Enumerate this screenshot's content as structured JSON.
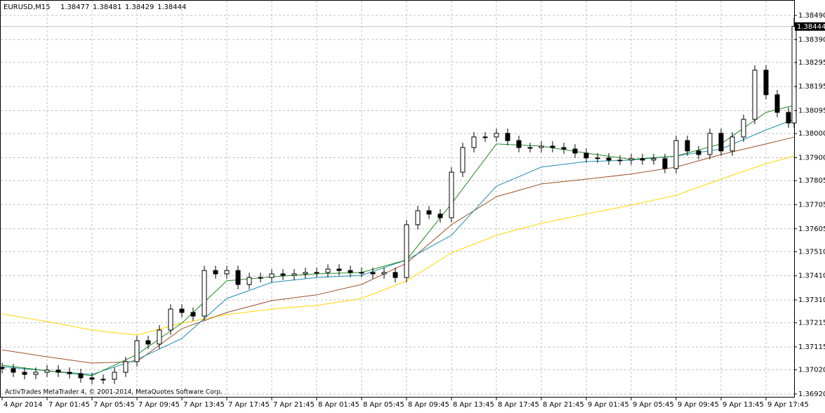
{
  "chart_data": {
    "type": "candlestick",
    "symbol": "EURUSD,M15",
    "ohlc": [
      1.38477,
      1.38481,
      1.38429,
      1.38444
    ],
    "footer": "ActivTrades MetaTrader 4, © 2001-2014, MetaQuotes Software Corp.",
    "grid": true,
    "up_color": "#ffffff",
    "down_color": "#000000",
    "wick_color": "#000000",
    "price_line_color": "#c0c0c0",
    "xlim": [
      0,
      282
    ],
    "ylim": [
      1.36908,
      1.38554
    ],
    "xticks": [
      {
        "value": 0,
        "label": "4 Apr 2014"
      },
      {
        "value": 16,
        "label": "7 Apr 01:45"
      },
      {
        "value": 32,
        "label": "7 Apr 05:45"
      },
      {
        "value": 48,
        "label": "7 Apr 09:45"
      },
      {
        "value": 64,
        "label": "7 Apr 13:45"
      },
      {
        "value": 80,
        "label": "7 Apr 17:45"
      },
      {
        "value": 96,
        "label": "7 Apr 21:45"
      },
      {
        "value": 112,
        "label": "8 Apr 01:45"
      },
      {
        "value": 128,
        "label": "8 Apr 05:45"
      },
      {
        "value": 144,
        "label": "8 Apr 09:45"
      },
      {
        "value": 160,
        "label": "8 Apr 13:45"
      },
      {
        "value": 176,
        "label": "8 Apr 17:45"
      },
      {
        "value": 192,
        "label": "8 Apr 21:45"
      },
      {
        "value": 208,
        "label": "9 Apr 01:45"
      },
      {
        "value": 224,
        "label": "9 Apr 05:45"
      },
      {
        "value": 240,
        "label": "9 Apr 09:45"
      },
      {
        "value": 256,
        "label": "9 Apr 13:45"
      },
      {
        "value": 272,
        "label": "9 Apr 17:45"
      }
    ],
    "yticks": [
      {
        "value": 1.3849,
        "label": "1.38490"
      },
      {
        "value": 1.3839,
        "label": "1.38390"
      },
      1.38295,
      1.38195,
      1.38095,
      {
        "value": 1.38,
        "label": "1.38000"
      },
      {
        "value": 1.379,
        "label": "1.37900"
      },
      1.37805,
      1.37705,
      1.37605,
      {
        "value": 1.3751,
        "label": "1.37510"
      },
      {
        "value": 1.3741,
        "label": "1.37410"
      },
      {
        "value": 1.3731,
        "label": "1.37310"
      },
      1.37215,
      1.37115,
      {
        "value": 1.3702,
        "label": "1.37020"
      },
      {
        "value": 1.3692,
        "label": "1.36920"
      }
    ],
    "x": [
      0,
      4,
      8,
      12,
      16,
      20,
      24,
      28,
      32,
      36,
      40,
      44,
      48,
      52,
      56,
      60,
      64,
      68,
      72,
      76,
      80,
      84,
      88,
      92,
      96,
      100,
      104,
      108,
      112,
      116,
      120,
      124,
      128,
      132,
      136,
      140,
      144,
      148,
      152,
      156,
      160,
      164,
      168,
      172,
      176,
      180,
      184,
      188,
      192,
      196,
      200,
      204,
      208,
      212,
      216,
      220,
      224,
      228,
      232,
      236,
      240,
      244,
      248,
      252,
      256,
      260,
      264,
      268,
      272,
      276,
      280,
      282
    ],
    "open": [
      1.3703,
      1.37025,
      1.3701,
      1.37001,
      1.3701,
      1.37019,
      1.3701,
      1.37004,
      1.36987,
      1.36981,
      1.36981,
      1.3701,
      1.37054,
      1.37141,
      1.37127,
      1.37185,
      1.37272,
      1.37258,
      1.37243,
      1.37432,
      1.37418,
      1.37432,
      1.37374,
      1.37403,
      1.37403,
      1.37418,
      1.37412,
      1.37418,
      1.37424,
      1.37424,
      1.37438,
      1.37432,
      1.37424,
      1.37424,
      1.37418,
      1.37424,
      1.37403,
      1.37622,
      1.3768,
      1.37666,
      1.37651,
      1.3784,
      1.37942,
      1.37986,
      1.37986,
      1.38001,
      1.37971,
      1.37942,
      1.37942,
      1.37948,
      1.37942,
      1.37936,
      1.37919,
      1.37899,
      1.37899,
      1.3789,
      1.3789,
      1.37896,
      1.3789,
      1.37896,
      1.37855,
      1.37971,
      1.37928,
      1.37913,
      1.38001,
      1.37928,
      1.37986,
      1.38059,
      1.38263,
      1.38161,
      1.38088,
      1.38044
    ],
    "high": [
      1.3705,
      1.37045,
      1.3703,
      1.3703,
      1.37039,
      1.37039,
      1.3703,
      1.37024,
      1.37007,
      1.37001,
      1.3703,
      1.37074,
      1.37161,
      1.37161,
      1.37205,
      1.37292,
      1.37292,
      1.37278,
      1.37452,
      1.37452,
      1.37452,
      1.37452,
      1.37423,
      1.37423,
      1.37438,
      1.37438,
      1.37438,
      1.37444,
      1.37444,
      1.37458,
      1.37458,
      1.37452,
      1.37444,
      1.37444,
      1.37444,
      1.37444,
      1.37642,
      1.377,
      1.377,
      1.37686,
      1.3786,
      1.37962,
      1.38006,
      1.38006,
      1.38021,
      1.38021,
      1.37991,
      1.37962,
      1.37968,
      1.37968,
      1.37962,
      1.37956,
      1.37939,
      1.37919,
      1.37919,
      1.3791,
      1.37916,
      1.37916,
      1.37916,
      1.37916,
      1.37991,
      1.37991,
      1.37948,
      1.38021,
      1.38021,
      1.38006,
      1.38079,
      1.38283,
      1.38283,
      1.38181,
      1.38108,
      1.38481
    ],
    "low": [
      1.37005,
      1.3699,
      1.36981,
      1.36981,
      1.3699,
      1.3699,
      1.36984,
      1.36967,
      1.36961,
      1.36961,
      1.36961,
      1.3699,
      1.37034,
      1.37107,
      1.37107,
      1.37165,
      1.37238,
      1.37223,
      1.37223,
      1.37398,
      1.37398,
      1.37354,
      1.37354,
      1.37383,
      1.37383,
      1.37392,
      1.37392,
      1.37398,
      1.37404,
      1.37404,
      1.37412,
      1.37404,
      1.37404,
      1.37398,
      1.37398,
      1.37383,
      1.37383,
      1.37602,
      1.37646,
      1.37631,
      1.37631,
      1.3782,
      1.37922,
      1.37966,
      1.37966,
      1.37951,
      1.37922,
      1.37922,
      1.37922,
      1.37922,
      1.37916,
      1.37899,
      1.37879,
      1.37879,
      1.3787,
      1.3787,
      1.3787,
      1.3787,
      1.3787,
      1.37835,
      1.37835,
      1.37908,
      1.37893,
      1.37893,
      1.37908,
      1.37908,
      1.37966,
      1.38039,
      1.38141,
      1.38068,
      1.38024,
      1.38024
    ],
    "close": [
      1.37025,
      1.3701,
      1.37001,
      1.3701,
      1.37019,
      1.3701,
      1.37004,
      1.36987,
      1.36981,
      1.36981,
      1.3701,
      1.37054,
      1.37141,
      1.37127,
      1.37185,
      1.37272,
      1.37258,
      1.37243,
      1.37432,
      1.37418,
      1.37432,
      1.37374,
      1.37403,
      1.37403,
      1.37418,
      1.37412,
      1.37418,
      1.37424,
      1.37424,
      1.37438,
      1.37432,
      1.37424,
      1.37424,
      1.37418,
      1.37424,
      1.37403,
      1.37622,
      1.3768,
      1.37666,
      1.37651,
      1.3784,
      1.37942,
      1.37986,
      1.37986,
      1.38001,
      1.37971,
      1.37942,
      1.37942,
      1.37948,
      1.37942,
      1.37936,
      1.37919,
      1.37899,
      1.37899,
      1.3789,
      1.3789,
      1.37896,
      1.3789,
      1.37896,
      1.37855,
      1.37971,
      1.37928,
      1.37913,
      1.38001,
      1.37928,
      1.37986,
      1.38059,
      1.38263,
      1.38161,
      1.38088,
      1.38044,
      1.38444
    ],
    "line_x": [
      0,
      16,
      32,
      48,
      64,
      80,
      96,
      112,
      128,
      144,
      160,
      176,
      192,
      208,
      224,
      240,
      256,
      272,
      282
    ],
    "lines": [
      {
        "color": "#ffd700",
        "values": [
          1.37252,
          1.3722,
          1.37185,
          1.37164,
          1.37214,
          1.37249,
          1.37272,
          1.37287,
          1.37316,
          1.37389,
          1.37505,
          1.37578,
          1.37628,
          1.37666,
          1.37703,
          1.37744,
          1.37811,
          1.37875,
          1.37907
        ]
      },
      {
        "color": "#a0522d",
        "values": [
          1.37103,
          1.37074,
          1.37048,
          1.37054,
          1.37191,
          1.37258,
          1.37307,
          1.37331,
          1.37374,
          1.37462,
          1.37622,
          1.37738,
          1.37791,
          1.37811,
          1.37832,
          1.37861,
          1.37913,
          1.37957,
          1.37985
        ]
      },
      {
        "color": "#1e90b0",
        "values": [
          1.37033,
          1.37016,
          1.37001,
          1.37063,
          1.3715,
          1.37316,
          1.37383,
          1.37403,
          1.37412,
          1.37476,
          1.37578,
          1.37782,
          1.37861,
          1.37884,
          1.3789,
          1.37907,
          1.37936,
          1.38015,
          1.38059
        ]
      },
      {
        "color": "#228b22",
        "values": [
          1.37039,
          1.37016,
          1.36996,
          1.37083,
          1.37214,
          1.37389,
          1.37406,
          1.37418,
          1.37424,
          1.37476,
          1.37709,
          1.37957,
          1.37948,
          1.37919,
          1.37893,
          1.37907,
          1.37957,
          1.38088,
          1.38117
        ]
      }
    ]
  }
}
